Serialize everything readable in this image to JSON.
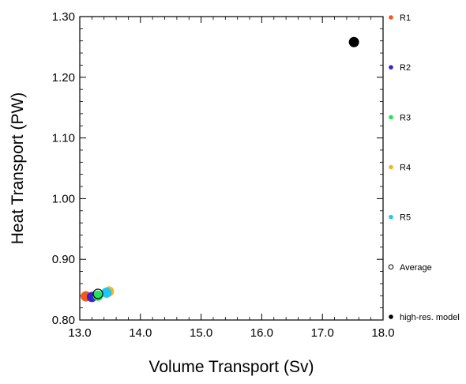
{
  "chart_data": {
    "type": "scatter",
    "xlabel": "Volume Transport (Sv)",
    "ylabel": "Heat Transport (PW)",
    "xlim": [
      13.0,
      18.0
    ],
    "ylim": [
      0.8,
      1.3
    ],
    "x_ticks": [
      "13.0",
      "14.0",
      "15.0",
      "16.0",
      "17.0",
      "18.0"
    ],
    "y_ticks": [
      "0.80",
      "0.90",
      "1.00",
      "1.10",
      "1.20",
      "1.30"
    ],
    "grid": false,
    "legend_placement": "right",
    "series": [
      {
        "name": "R1",
        "color": "#f05a1e",
        "marker": "filled-circle",
        "points": [
          [
            13.1,
            0.839
          ]
        ]
      },
      {
        "name": "R2",
        "color": "#3d1fd1",
        "marker": "filled-circle",
        "points": [
          [
            13.2,
            0.838
          ]
        ]
      },
      {
        "name": "R3",
        "color": "#22e35a",
        "marker": "filled-circle",
        "points": [
          [
            13.3,
            0.84
          ]
        ]
      },
      {
        "name": "R4",
        "color": "#f5b521",
        "marker": "filled-circle",
        "points": [
          [
            13.48,
            0.847
          ]
        ]
      },
      {
        "name": "R5",
        "color": "#1ec8f0",
        "marker": "filled-circle",
        "points": [
          [
            13.44,
            0.845
          ]
        ]
      },
      {
        "name": "Average",
        "color": "#000000",
        "marker": "open-circle",
        "points": [
          [
            13.3,
            0.843
          ]
        ]
      },
      {
        "name": "high-res. model",
        "color": "#000000",
        "marker": "filled-circle",
        "points": [
          [
            17.52,
            1.258
          ]
        ]
      }
    ]
  }
}
